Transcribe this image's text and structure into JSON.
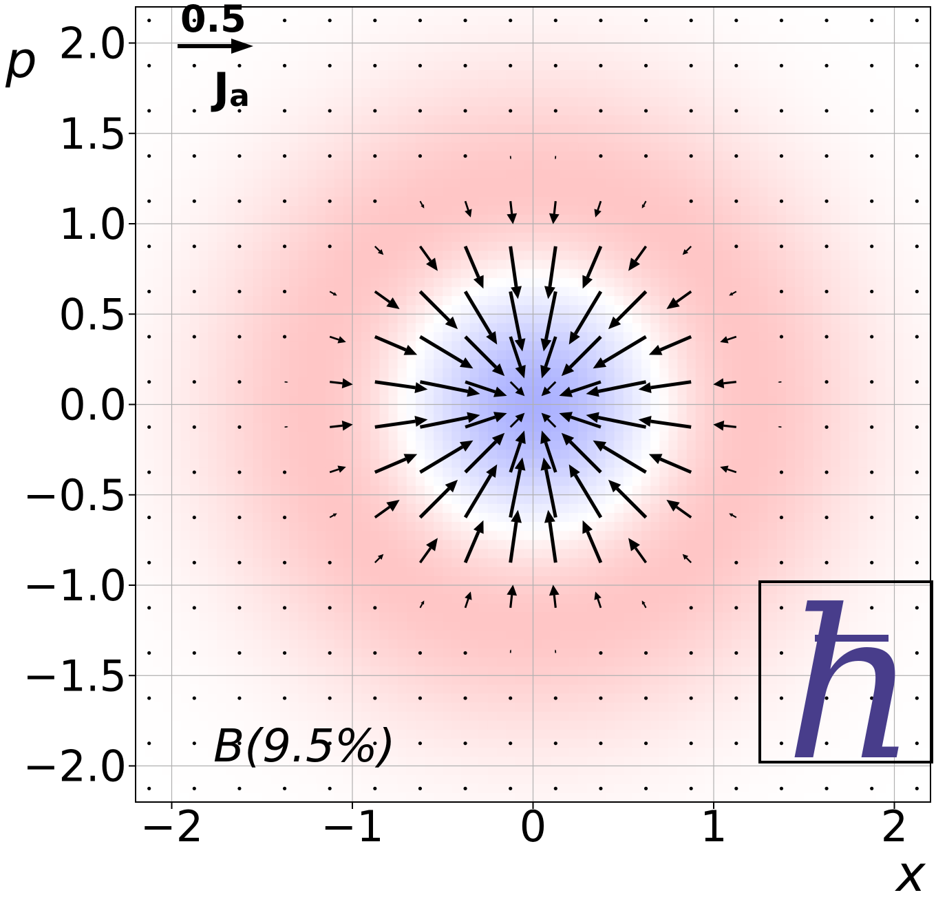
{
  "chart_data": {
    "type": "heatmap",
    "xlabel": "x",
    "ylabel": "p",
    "xlim": [
      -2.2,
      2.2
    ],
    "ylim": [
      -2.2,
      2.2
    ],
    "xticks": [
      -2,
      -1,
      0,
      1,
      2
    ],
    "xtick_labels": [
      "−2",
      "−1",
      "0",
      "1",
      "2"
    ],
    "yticks": [
      2.0,
      1.5,
      1.0,
      0.5,
      0.0,
      -0.5,
      -1.0,
      -1.5,
      -2.0
    ],
    "ytick_labels": [
      "2.0",
      "1.5",
      "1.0",
      "0.5",
      "0.0",
      "−0.5",
      "−1.0",
      "−1.5",
      "−2.0"
    ],
    "grid": true,
    "field": {
      "description_of_colors": "negative values blue near origin, positive values red ring",
      "negative_color": "#aab0ff",
      "positive_color": "#ffa8a8",
      "ring_radius": 1.35
    },
    "quiver": {
      "name": "J_a",
      "grid_spacing": 0.25,
      "grid_range": [
        -2.125,
        2.125
      ],
      "direction": "inward toward origin",
      "key_value": "0.5",
      "key_label_main": "J",
      "key_label_sub": "a"
    },
    "annotation": "B(9.5%)",
    "inset_symbol": "ℏ"
  }
}
